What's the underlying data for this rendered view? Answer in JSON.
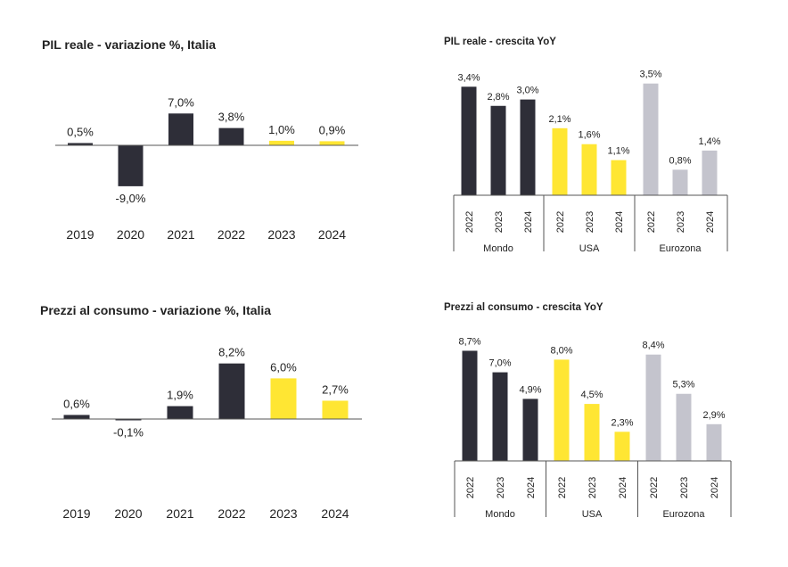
{
  "colors": {
    "dark": "#2e2e38",
    "yellow": "#ffe633",
    "grey": "#c4c4cd"
  },
  "chart_data": [
    {
      "type": "bar",
      "title": "PIL reale - variazione %, Italia",
      "categories": [
        "2019",
        "2020",
        "2021",
        "2022",
        "2023",
        "2024"
      ],
      "values": [
        0.5,
        -9.0,
        7.0,
        3.8,
        1.0,
        0.9
      ],
      "value_labels": [
        "0,5%",
        "-9,0%",
        "7,0%",
        "3,8%",
        "1,0%",
        "0,9%"
      ],
      "bar_colors": [
        "dark",
        "dark",
        "dark",
        "dark",
        "yellow",
        "yellow"
      ],
      "ylim": [
        -9.5,
        8.5
      ]
    },
    {
      "type": "bar",
      "title": "PIL reale - crescita YoY",
      "groups": [
        {
          "name": "Mondo",
          "categories": [
            "2022",
            "2023",
            "2024"
          ],
          "values": [
            3.4,
            2.8,
            3.0
          ],
          "value_labels": [
            "3,4%",
            "2,8%",
            "3,0%"
          ],
          "color": "dark"
        },
        {
          "name": "USA",
          "categories": [
            "2022",
            "2023",
            "2024"
          ],
          "values": [
            2.1,
            1.6,
            1.1
          ],
          "value_labels": [
            "2,1%",
            "1,6%",
            "1,1%"
          ],
          "color": "yellow"
        },
        {
          "name": "Eurozona",
          "categories": [
            "2022",
            "2023",
            "2024"
          ],
          "values": [
            3.5,
            0.8,
            1.4
          ],
          "value_labels": [
            "3,5%",
            "0,8%",
            "1,4%"
          ],
          "color": "grey"
        }
      ],
      "ylim": [
        0,
        4.1
      ]
    },
    {
      "type": "bar",
      "title": "Prezzi al consumo - variazione %, Italia",
      "categories": [
        "2019",
        "2020",
        "2021",
        "2022",
        "2023",
        "2024"
      ],
      "values": [
        0.6,
        -0.1,
        1.9,
        8.2,
        6.0,
        2.7
      ],
      "value_labels": [
        "0,6%",
        "-0,1%",
        "1,9%",
        "8,2%",
        "6,0%",
        "2,7%"
      ],
      "bar_colors": [
        "dark",
        "dark",
        "dark",
        "dark",
        "yellow",
        "yellow"
      ],
      "ylim": [
        -1,
        10
      ]
    },
    {
      "type": "bar",
      "title": "Prezzi al consumo - crescita YoY",
      "groups": [
        {
          "name": "Mondo",
          "categories": [
            "2022",
            "2023",
            "2024"
          ],
          "values": [
            8.7,
            7.0,
            4.9
          ],
          "value_labels": [
            "8,7%",
            "7,0%",
            "4,9%"
          ],
          "color": "dark"
        },
        {
          "name": "USA",
          "categories": [
            "2022",
            "2023",
            "2024"
          ],
          "values": [
            8.0,
            4.5,
            2.3
          ],
          "value_labels": [
            "8,0%",
            "4,5%",
            "2,3%"
          ],
          "color": "yellow"
        },
        {
          "name": "Eurozona",
          "categories": [
            "2022",
            "2023",
            "2024"
          ],
          "values": [
            8.4,
            5.3,
            2.9
          ],
          "value_labels": [
            "8,4%",
            "5,3%",
            "2,9%"
          ],
          "color": "grey"
        }
      ],
      "ylim": [
        0,
        9.4
      ]
    }
  ]
}
